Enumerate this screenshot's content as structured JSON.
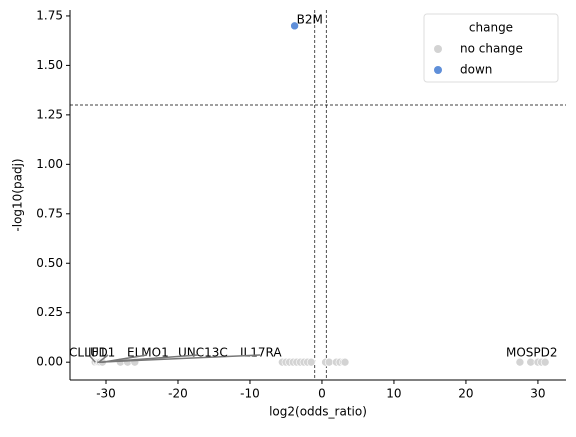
{
  "chart_data": {
    "type": "scatter",
    "xlabel": "log2(odds_ratio)",
    "ylabel": "-log10(padj)",
    "xlim": [
      -35,
      33.9
    ],
    "ylim": [
      -0.09,
      1.78
    ],
    "xticks": [
      -30,
      -20,
      -10,
      0,
      10,
      20,
      30
    ],
    "yticks": [
      {
        "value": 0,
        "label": "0.00"
      },
      {
        "value": 0.25,
        "label": "0.25"
      },
      {
        "value": 0.5,
        "label": "0.50"
      },
      {
        "value": 0.75,
        "label": "0.75"
      },
      {
        "value": 1,
        "label": "1.00"
      },
      {
        "value": 1.25,
        "label": "1.25"
      },
      {
        "value": 1.5,
        "label": "1.50"
      },
      {
        "value": 1.75,
        "label": "1.75"
      }
    ],
    "hlines": [
      1.3
    ],
    "vlines": [
      -1,
      0.6
    ],
    "legend_title": "change",
    "legend": "upper right",
    "series": [
      {
        "name": "no change",
        "color": "#d3d3d3",
        "x": [
          -31.5,
          -31.2,
          -31,
          -30.8,
          -30.5,
          -28,
          -27,
          -26,
          -5.5,
          -5,
          -4.5,
          -4,
          -3.5,
          -3,
          -2.5,
          -2,
          -1.5,
          0.5,
          1,
          2,
          2.5,
          3,
          3.2,
          27.5,
          29,
          30,
          30.5,
          31
        ],
        "values": [
          0,
          0,
          0,
          0,
          0,
          0,
          0,
          0,
          0,
          0,
          0,
          0,
          0,
          0,
          0,
          0,
          0,
          0,
          0,
          0,
          0,
          0,
          0,
          0,
          0,
          0,
          0,
          0
        ],
        "labels": [
          "CLLU1",
          "IL17RA",
          "IFD1",
          "UNC13C",
          "ELMO1",
          null,
          null,
          null,
          null,
          null,
          null,
          null,
          null,
          null,
          null,
          null,
          null,
          null,
          null,
          null,
          null,
          null,
          null,
          null,
          null,
          null,
          null,
          "MOSPD2"
        ]
      },
      {
        "name": "down",
        "color": "#5f8fd9",
        "x": [
          -3.8
        ],
        "values": [
          1.7
        ],
        "labels": [
          "B2M"
        ]
      }
    ]
  }
}
